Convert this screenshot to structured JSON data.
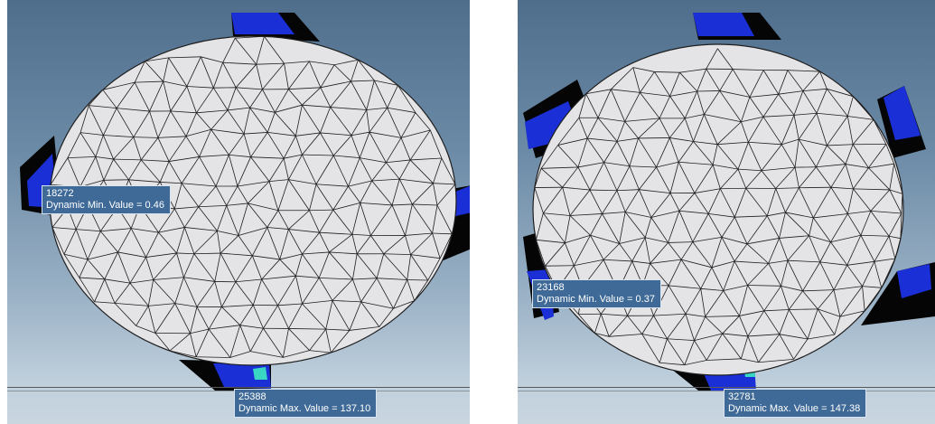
{
  "views": [
    {
      "id": "left",
      "min_label": {
        "node": "18272",
        "text": "Dynamic Min. Value =  0.46"
      },
      "max_label": {
        "node": "25388",
        "text": "Dynamic Max. Value =  137.10"
      }
    },
    {
      "id": "right",
      "min_label": {
        "node": "23168",
        "text": "Dynamic Min. Value =  0.37"
      },
      "max_label": {
        "node": "32781",
        "text": "Dynamic Max. Value =  147.38"
      }
    }
  ],
  "colors": {
    "mesh_fill": "#e4e3e6",
    "mesh_lines": "#1e1e1e",
    "contact_blue": "#1b2fd6",
    "contact_black": "#050505",
    "label_bg": "#3f6a97"
  }
}
